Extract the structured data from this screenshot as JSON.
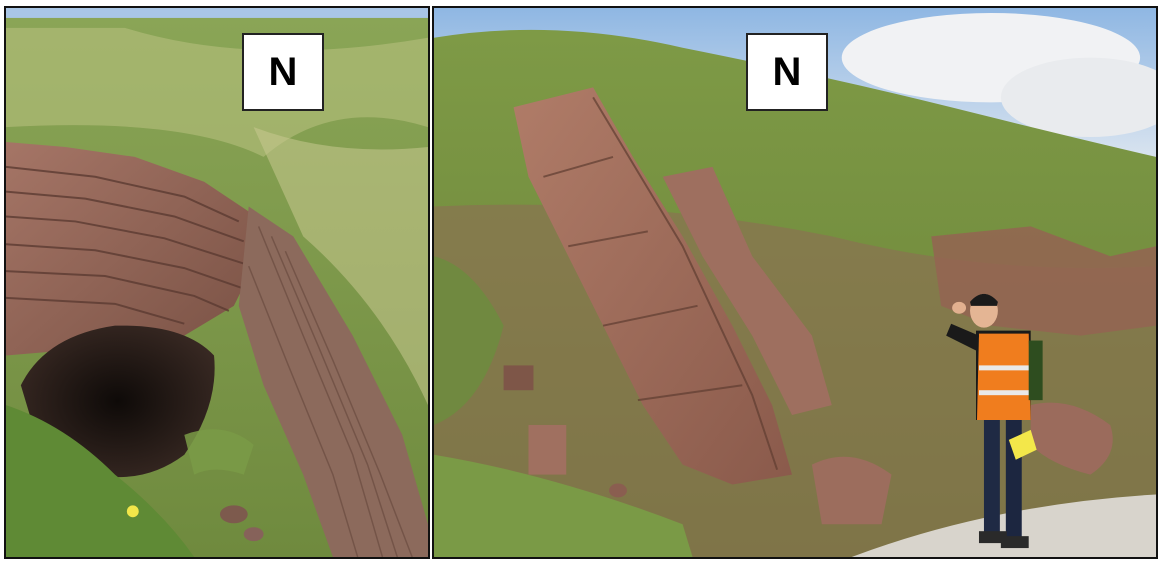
{
  "panels": [
    {
      "id": "left",
      "north_label": "N"
    },
    {
      "id": "right",
      "north_label": "N"
    }
  ],
  "colors": {
    "sky": "#9fc3e8",
    "cloud": "#eef0f3",
    "grass": "#7f9a48",
    "grass_light": "#c9cf8f",
    "rock": "#9b6b5c",
    "rock_dark": "#5c3b32",
    "cave": "#1f1714",
    "vest": "#f07d1e"
  }
}
